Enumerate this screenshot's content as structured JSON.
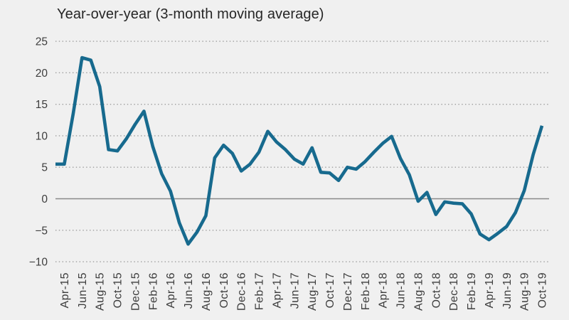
{
  "title": "Year-over-year (3-month moving average)",
  "colors": {
    "background": "#f0f0f0",
    "line": "#176a8e",
    "grid_dots": "#9c9c9c",
    "zero_line": "#898989",
    "title_text": "#262626",
    "axis_text": "#3d3d3d"
  },
  "chart_data": {
    "type": "line",
    "title": "Year-over-year (3-month moving average)",
    "x": [
      "Mar-15",
      "Apr-15",
      "May-15",
      "Jun-15",
      "Jul-15",
      "Aug-15",
      "Sep-15",
      "Oct-15",
      "Nov-15",
      "Dec-15",
      "Jan-16",
      "Feb-16",
      "Mar-16",
      "Apr-16",
      "May-16",
      "Jun-16",
      "Jul-16",
      "Aug-16",
      "Sep-16",
      "Oct-16",
      "Nov-16",
      "Dec-16",
      "Jan-17",
      "Feb-17",
      "Mar-17",
      "Apr-17",
      "May-17",
      "Jun-17",
      "Jul-17",
      "Aug-17",
      "Sep-17",
      "Oct-17",
      "Nov-17",
      "Dec-17",
      "Jan-18",
      "Feb-18",
      "Mar-18",
      "Apr-18",
      "May-18",
      "Jun-18",
      "Jul-18",
      "Aug-18",
      "Sep-18",
      "Oct-18",
      "Nov-18",
      "Dec-18",
      "Jan-19",
      "Feb-19",
      "Mar-19",
      "Apr-19",
      "May-19",
      "Jun-19",
      "Jul-19",
      "Aug-19",
      "Sep-19",
      "Oct-19"
    ],
    "values": [
      5.5,
      5.5,
      13.5,
      22.4,
      22.0,
      17.8,
      7.8,
      7.6,
      9.5,
      11.8,
      13.9,
      8.3,
      4.0,
      1.2,
      -3.8,
      -7.2,
      -5.3,
      -2.7,
      6.5,
      8.5,
      7.2,
      4.4,
      5.5,
      7.4,
      10.7,
      9.0,
      7.8,
      6.3,
      5.5,
      8.1,
      4.2,
      4.1,
      2.9,
      5.0,
      4.7,
      5.9,
      7.4,
      8.8,
      9.9,
      6.4,
      3.8,
      -0.4,
      1.0,
      -2.5,
      -0.5,
      -0.7,
      -0.8,
      -2.4,
      -5.6,
      -6.5,
      -5.5,
      -4.4,
      -2.2,
      1.3,
      7.0,
      11.6
    ],
    "x_tick_labels": [
      "Apr-15",
      "Jun-15",
      "Aug-15",
      "Oct-15",
      "Dec-15",
      "Feb-16",
      "Apr-16",
      "Jun-16",
      "Aug-16",
      "Oct-16",
      "Dec-16",
      "Feb-17",
      "Apr-17",
      "Jun-17",
      "Aug-17",
      "Oct-17",
      "Dec-17",
      "Feb-18",
      "Apr-18",
      "Jun-18",
      "Aug-18",
      "Oct-18",
      "Dec-18",
      "Feb-19",
      "Apr-19",
      "Jun-19",
      "Aug-19",
      "Oct-19"
    ],
    "y_ticks": [
      25,
      20,
      15,
      10,
      5,
      0,
      -5,
      -10
    ],
    "y_tick_labels": [
      "25",
      "20",
      "15",
      "10",
      "5",
      "0",
      "−5",
      "−10"
    ],
    "ylim": [
      -10,
      25
    ],
    "xlabel": "",
    "ylabel": "",
    "grid": "dotted-horizontal",
    "legend": "none"
  }
}
